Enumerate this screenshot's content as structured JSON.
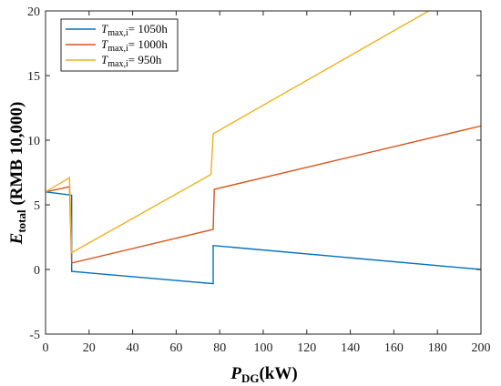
{
  "chart_data": {
    "type": "line",
    "xlabel": {
      "main": "P",
      "sub": "DG",
      "unit": "(kW)"
    },
    "ylabel": {
      "main": "E",
      "sub": "total",
      "unit": " (RMB 10,000)"
    },
    "xlim": [
      0,
      200
    ],
    "ylim": [
      -5,
      20
    ],
    "xticks": [
      "0",
      "20",
      "40",
      "60",
      "80",
      "100",
      "120",
      "140",
      "160",
      "180",
      "200"
    ],
    "yticks": [
      "-5",
      "0",
      "5",
      "10",
      "15",
      "20"
    ],
    "grid": false,
    "legend_position": "top-left",
    "series": [
      {
        "name": {
          "italic": "T",
          "sub": "max,i",
          "value": "= 1050h"
        },
        "color": "#0072BD",
        "points": [
          [
            0,
            6.0
          ],
          [
            12,
            5.75
          ],
          [
            12,
            -0.15
          ],
          [
            77,
            -1.1
          ],
          [
            77,
            1.85
          ],
          [
            200,
            0.0
          ]
        ]
      },
      {
        "name": {
          "italic": "T",
          "sub": "max,i",
          "value": "= 1000h"
        },
        "color": "#D95319",
        "points": [
          [
            0,
            6.0
          ],
          [
            11,
            6.4
          ],
          [
            12,
            0.5
          ],
          [
            77,
            3.1
          ],
          [
            77.5,
            6.2
          ],
          [
            200,
            11.1
          ]
        ]
      },
      {
        "name": {
          "italic": "T",
          "sub": "max,i",
          "value": "= 950h"
        },
        "color": "#EDB120",
        "points": [
          [
            0,
            6.0
          ],
          [
            11,
            7.1
          ],
          [
            12,
            1.3
          ],
          [
            76,
            7.35
          ],
          [
            77,
            10.5
          ],
          [
            176,
            20.0
          ]
        ]
      }
    ]
  }
}
